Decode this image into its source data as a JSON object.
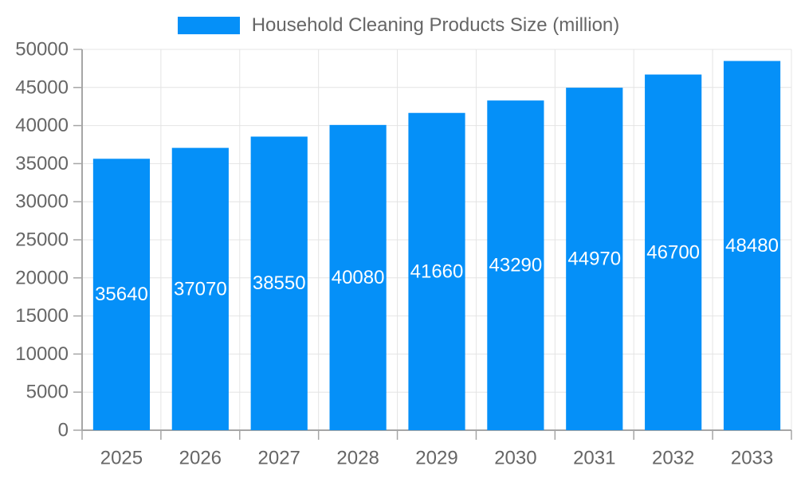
{
  "chart_data": {
    "type": "bar",
    "title": "",
    "legend": "Household Cleaning Products Size (million)",
    "legend_position": "top",
    "categories": [
      "2025",
      "2026",
      "2027",
      "2028",
      "2029",
      "2030",
      "2031",
      "2032",
      "2033"
    ],
    "series": [
      {
        "name": "Household Cleaning Products Size (million)",
        "values": [
          35640,
          37070,
          38550,
          40080,
          41660,
          43290,
          44970,
          46700,
          48480
        ]
      }
    ],
    "data_labels": [
      "35640",
      "37070",
      "38550",
      "40080",
      "41660",
      "43290",
      "44970",
      "46700",
      "48480"
    ],
    "xlabel": "",
    "ylabel": "",
    "ylim": [
      0,
      50000
    ],
    "yticks": [
      0,
      5000,
      10000,
      15000,
      20000,
      25000,
      30000,
      35000,
      40000,
      45000,
      50000
    ],
    "grid": true,
    "colors": {
      "bar": "#0590f8",
      "grid_line": "#e4e4e4",
      "axis_line": "#a6a6a6",
      "tick_mark": "#a6a6a6",
      "axis_text": "#666666",
      "bar_label_text": "#ffffff",
      "background": "#ffffff"
    }
  }
}
